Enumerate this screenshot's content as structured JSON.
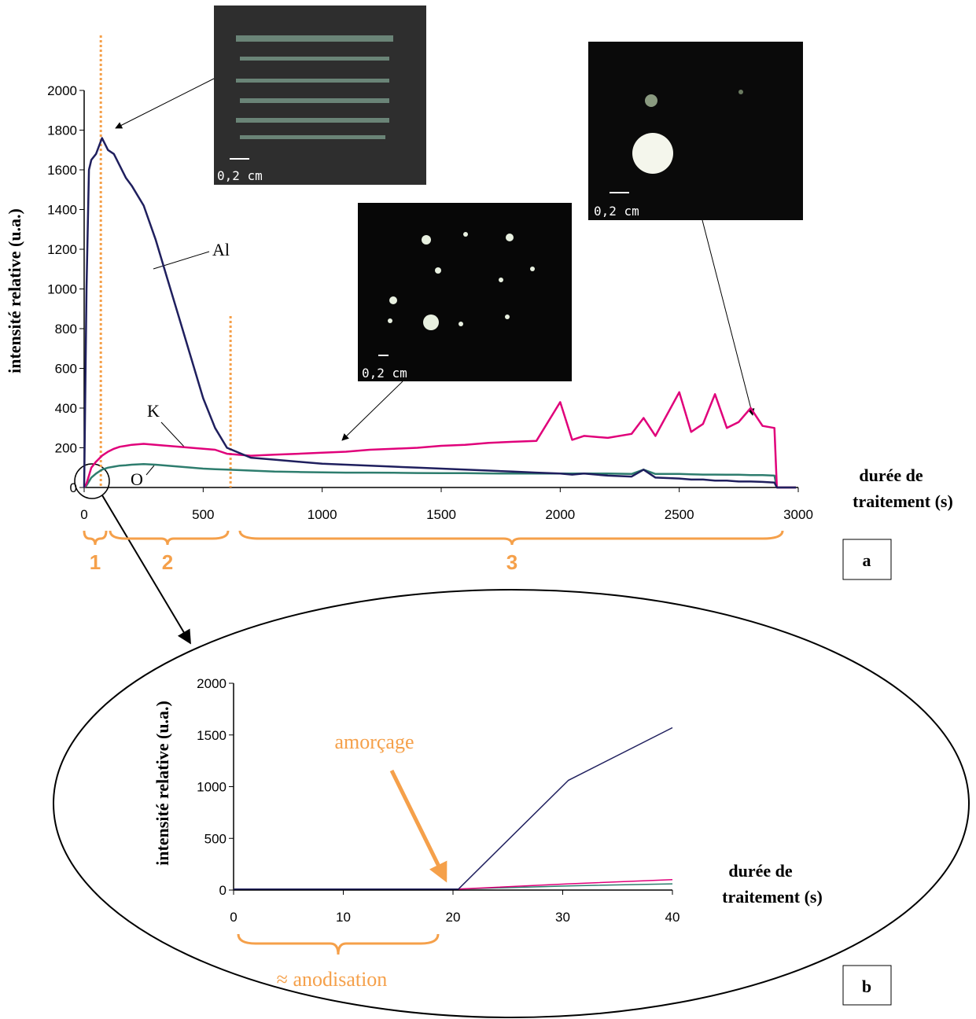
{
  "chart_data": [
    {
      "type": "line",
      "panel": "a",
      "y_label": "intensité relative (u.a.)",
      "x_label_lines": [
        "durée de",
        "traitement (s)"
      ],
      "xlim": [
        0,
        3000
      ],
      "ylim": [
        0,
        2000
      ],
      "xticks": [
        0,
        500,
        1000,
        1500,
        2000,
        2500,
        3000
      ],
      "yticks": [
        0,
        200,
        400,
        600,
        800,
        1000,
        1200,
        1400,
        1600,
        1800,
        2000
      ],
      "marker_lines": [
        70,
        615
      ],
      "regions": [
        "1",
        "2",
        "3"
      ],
      "x": [
        0,
        10,
        20,
        30,
        50,
        75,
        100,
        125,
        150,
        175,
        200,
        250,
        300,
        350,
        400,
        450,
        500,
        550,
        600,
        700,
        800,
        900,
        1000,
        1100,
        1200,
        1300,
        1400,
        1500,
        1600,
        1700,
        1800,
        1900,
        2000,
        2050,
        2100,
        2200,
        2300,
        2350,
        2400,
        2500,
        2550,
        2600,
        2650,
        2700,
        2750,
        2800,
        2850,
        2900,
        2910,
        2950,
        2990
      ],
      "series": [
        {
          "name": "Al",
          "color": "#1f1f5e",
          "values": [
            0,
            1000,
            1600,
            1650,
            1680,
            1760,
            1700,
            1680,
            1620,
            1560,
            1520,
            1420,
            1250,
            1050,
            850,
            650,
            450,
            300,
            200,
            150,
            140,
            130,
            120,
            115,
            110,
            105,
            100,
            95,
            90,
            85,
            80,
            75,
            70,
            65,
            70,
            60,
            55,
            90,
            50,
            45,
            40,
            40,
            35,
            35,
            30,
            30,
            28,
            25,
            0,
            0,
            0
          ]
        },
        {
          "name": "K",
          "color": "#e0007a",
          "values": [
            0,
            20,
            60,
            100,
            130,
            160,
            180,
            195,
            205,
            210,
            215,
            220,
            215,
            210,
            205,
            200,
            195,
            190,
            170,
            160,
            165,
            170,
            175,
            180,
            190,
            195,
            200,
            210,
            215,
            225,
            230,
            235,
            430,
            240,
            260,
            250,
            270,
            350,
            260,
            480,
            280,
            320,
            470,
            300,
            330,
            400,
            310,
            300,
            0,
            0,
            0
          ]
        },
        {
          "name": "O",
          "color": "#2e7d6e",
          "values": [
            0,
            10,
            30,
            50,
            70,
            90,
            100,
            105,
            110,
            112,
            115,
            118,
            115,
            110,
            105,
            100,
            95,
            92,
            90,
            85,
            80,
            78,
            76,
            75,
            75,
            74,
            73,
            72,
            72,
            71,
            70,
            70,
            70,
            70,
            70,
            70,
            68,
            90,
            68,
            68,
            66,
            65,
            65,
            64,
            64,
            62,
            62,
            60,
            0,
            0,
            0
          ]
        }
      ]
    },
    {
      "type": "line",
      "panel": "b",
      "y_label": "intensité relative (u.a.)",
      "x_label_lines": [
        "durée de",
        "traitement (s)"
      ],
      "xlim": [
        0,
        40
      ],
      "ylim": [
        0,
        2000
      ],
      "xticks": [
        0,
        10,
        20,
        30,
        40
      ],
      "yticks": [
        0,
        500,
        1000,
        1500,
        2000
      ],
      "annotations": [
        "amorçage",
        "≈ anodisation"
      ],
      "x": [
        0,
        10,
        20.5,
        30.5,
        40
      ],
      "series": [
        {
          "name": "Al",
          "color": "#1f1f5e",
          "values": [
            10,
            10,
            10,
            1060,
            1570
          ]
        },
        {
          "name": "K",
          "color": "#e0007a",
          "values": [
            10,
            10,
            10,
            60,
            100
          ]
        },
        {
          "name": "O",
          "color": "#2e7d6e",
          "values": [
            10,
            10,
            10,
            40,
            60
          ]
        }
      ]
    }
  ],
  "insets": [
    {
      "scale_label": "0,2 cm"
    },
    {
      "scale_label": "0,2 cm"
    },
    {
      "scale_label": "0,2 cm"
    }
  ]
}
